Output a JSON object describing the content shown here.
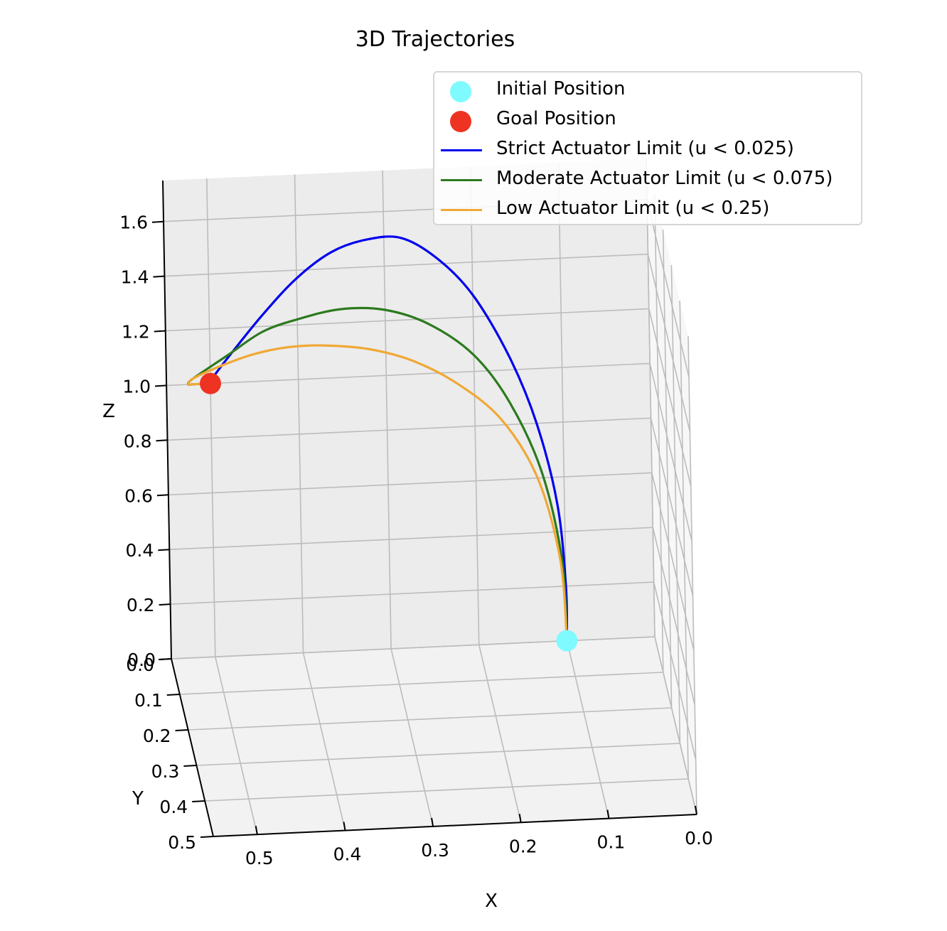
{
  "chart_data": {
    "type": "line3d",
    "title": "3D Trajectories",
    "xlabel": "X",
    "ylabel": "Y",
    "zlabel": "Z",
    "xlim": [
      0.0,
      0.55
    ],
    "ylim": [
      0.0,
      0.5
    ],
    "zlim": [
      0.0,
      1.75
    ],
    "x_ticks": [
      "0.0",
      "0.1",
      "0.2",
      "0.3",
      "0.4",
      "0.5"
    ],
    "y_ticks": [
      "0.0",
      "0.1",
      "0.2",
      "0.3",
      "0.4",
      "0.5"
    ],
    "z_ticks": [
      "0.0",
      "0.2",
      "0.4",
      "0.6",
      "0.8",
      "1.0",
      "1.2",
      "1.4",
      "1.6"
    ],
    "grid": true,
    "legend_position": "top-right",
    "markers": [
      {
        "name": "Initial Position",
        "color": "#7ffbff",
        "x": 0.1,
        "y": 0.0,
        "z": 0.0
      },
      {
        "name": "Goal Position",
        "color": "#ee3322",
        "x": 0.5,
        "y": 0.0,
        "z": 1.0
      }
    ],
    "series": [
      {
        "name": "Strict Actuator Limit (u < 0.025)",
        "color": "#0000ee",
        "x": [
          0.1,
          0.1,
          0.108,
          0.13,
          0.16,
          0.2,
          0.24,
          0.28,
          0.32,
          0.36,
          0.4,
          0.44,
          0.48,
          0.5
        ],
        "y": [
          0,
          0,
          0,
          0,
          0,
          0,
          0,
          0,
          0,
          0,
          0,
          0,
          0,
          0
        ],
        "z": [
          0.0,
          0.2,
          0.5,
          0.8,
          1.05,
          1.28,
          1.42,
          1.5,
          1.5,
          1.46,
          1.37,
          1.24,
          1.09,
          1.01
        ]
      },
      {
        "name": "Moderate Actuator Limit (u < 0.075)",
        "color": "#2c7a1e",
        "x": [
          0.1,
          0.104,
          0.125,
          0.16,
          0.2,
          0.25,
          0.3,
          0.35,
          0.4,
          0.44,
          0.48,
          0.52,
          0.525,
          0.52,
          0.5
        ],
        "y": [
          0,
          0,
          0,
          0,
          0,
          0,
          0,
          0,
          0,
          0,
          0,
          0,
          0,
          0,
          0
        ],
        "z": [
          0.0,
          0.3,
          0.62,
          0.88,
          1.06,
          1.18,
          1.24,
          1.25,
          1.22,
          1.18,
          1.1,
          1.02,
          1.0,
          1.0,
          1.0
        ]
      },
      {
        "name": "Low Actuator Limit (u < 0.25)",
        "color": "#f0a836",
        "x": [
          0.1,
          0.106,
          0.13,
          0.17,
          0.22,
          0.27,
          0.32,
          0.37,
          0.41,
          0.45,
          0.49,
          0.52,
          0.525,
          0.52,
          0.5
        ],
        "y": [
          0,
          0,
          0,
          0,
          0,
          0,
          0,
          0,
          0,
          0,
          0,
          0,
          0,
          0,
          0
        ],
        "z": [
          0.0,
          0.3,
          0.6,
          0.82,
          0.96,
          1.05,
          1.1,
          1.12,
          1.12,
          1.1,
          1.06,
          1.02,
          1.0,
          1.0,
          1.0
        ]
      }
    ]
  }
}
